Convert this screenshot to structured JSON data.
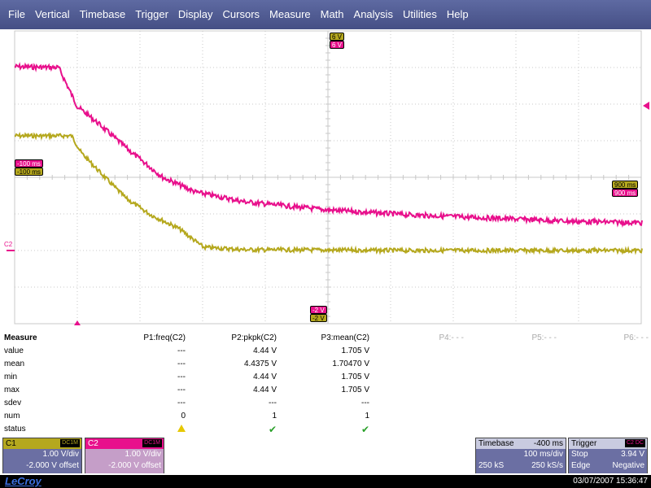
{
  "menu": [
    "File",
    "Vertical",
    "Timebase",
    "Trigger",
    "Display",
    "Cursors",
    "Measure",
    "Math",
    "Analysis",
    "Utilities",
    "Help"
  ],
  "colors": {
    "c1": "#b5a81e",
    "c2": "#e8108c",
    "grid": "#c8c8c8",
    "menu_bg": "#5069a0"
  },
  "markers": {
    "top_c1": "6 V",
    "top_c2": "6 V",
    "left_c2": "-100 ms",
    "left_c1": "-100 ms",
    "right_c1": "900 ms",
    "right_c2": "900 ms",
    "bottom_c2": "-2 V",
    "bottom_c1": "-2 V",
    "c2_ground": "C2"
  },
  "measure": {
    "title": "Measure",
    "params": [
      "P1:freq(C2)",
      "P2:pkpk(C2)",
      "P3:mean(C2)",
      "P4:- - -",
      "P5:- - -",
      "P6:- - -"
    ],
    "rows": [
      {
        "label": "value",
        "p1": "---",
        "p2": "4.44 V",
        "p3": "1.705 V"
      },
      {
        "label": "mean",
        "p1": "---",
        "p2": "4.4375 V",
        "p3": "1.70470 V"
      },
      {
        "label": "min",
        "p1": "---",
        "p2": "4.44 V",
        "p3": "1.705 V"
      },
      {
        "label": "max",
        "p1": "---",
        "p2": "4.44 V",
        "p3": "1.705 V"
      },
      {
        "label": "sdev",
        "p1": "---",
        "p2": "---",
        "p3": "---"
      },
      {
        "label": "num",
        "p1": "0",
        "p2": "1",
        "p3": "1"
      }
    ],
    "status_label": "status",
    "status_icons": [
      "warning-icon",
      "check-icon",
      "check-icon"
    ]
  },
  "ch1": {
    "name": "C1",
    "coupling": "DC1M",
    "vdiv": "1.00 V/div",
    "offset": "-2.000 V offset"
  },
  "ch2": {
    "name": "C2",
    "coupling": "DC1M",
    "vdiv": "1.00 V/div",
    "offset": "-2.000 V offset"
  },
  "timebase": {
    "title": "Timebase",
    "delay": "-400 ms",
    "tdiv": "100 ms/div",
    "samples": "250 kS",
    "rate": "250 kS/s"
  },
  "trigger": {
    "title": "Trigger",
    "source": "C2 DC",
    "mode": "Stop",
    "level": "3.94 V",
    "type": "Edge",
    "slope": "Negative"
  },
  "footer": {
    "logo": "LeCroy",
    "datetime": "03/07/2007 15:36:47"
  }
}
